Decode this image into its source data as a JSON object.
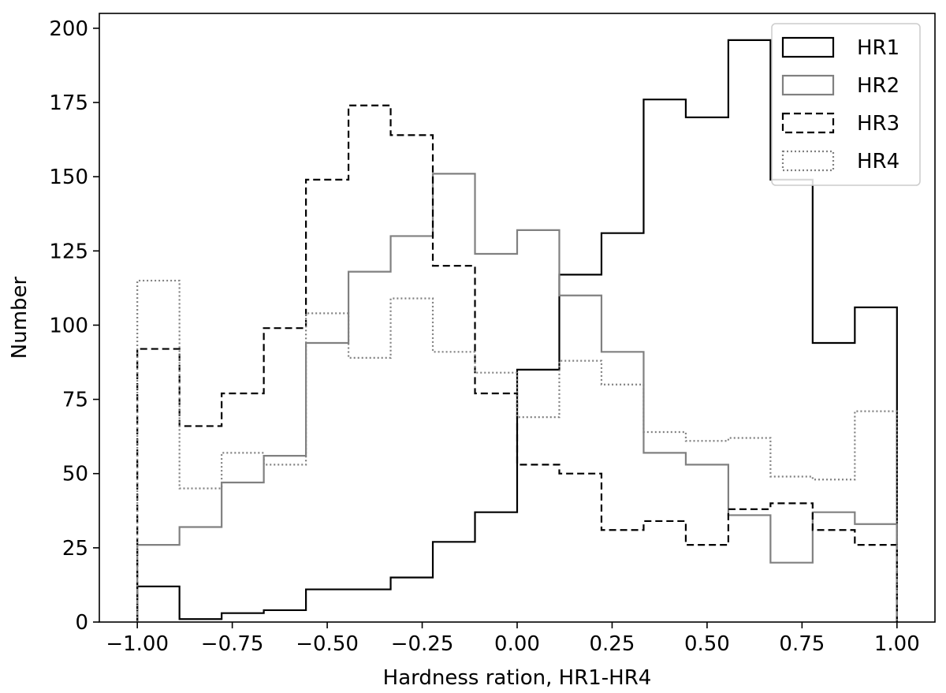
{
  "chart_data": {
    "type": "histogram-step",
    "title": "",
    "xlabel": "Hardness ration, HR1-HR4",
    "ylabel": "Number",
    "xlim": [
      -1.1,
      1.1
    ],
    "ylim": [
      0,
      205
    ],
    "xticks": [
      -1.0,
      -0.75,
      -0.5,
      -0.25,
      0.0,
      0.25,
      0.5,
      0.75,
      1.0
    ],
    "xtick_labels": [
      "−1.00",
      "−0.75",
      "−0.50",
      "−0.25",
      "0.00",
      "0.25",
      "0.50",
      "0.75",
      "1.00"
    ],
    "yticks": [
      0,
      25,
      50,
      75,
      100,
      125,
      150,
      175,
      200
    ],
    "ytick_labels": [
      "0",
      "25",
      "50",
      "75",
      "100",
      "125",
      "150",
      "175",
      "200"
    ],
    "grid": false,
    "legend_position": "top-right",
    "bin_edges": [
      -1.0,
      -0.889,
      -0.778,
      -0.667,
      -0.556,
      -0.444,
      -0.333,
      -0.222,
      -0.111,
      0.0,
      0.111,
      0.222,
      0.333,
      0.444,
      0.556,
      0.667,
      0.778,
      0.889,
      1.0
    ],
    "series": [
      {
        "name": "HR1",
        "color": "#000000",
        "dash": "solid",
        "values": [
          12,
          1,
          3,
          4,
          11,
          11,
          15,
          27,
          37,
          85,
          117,
          131,
          176,
          170,
          196,
          149,
          94,
          106
        ]
      },
      {
        "name": "HR2",
        "color": "#808080",
        "dash": "solid",
        "values": [
          26,
          32,
          47,
          56,
          94,
          118,
          130,
          151,
          124,
          132,
          110,
          91,
          57,
          53,
          36,
          20,
          37,
          33
        ]
      },
      {
        "name": "HR3",
        "color": "#000000",
        "dash": "dashed",
        "values": [
          92,
          66,
          77,
          99,
          149,
          174,
          164,
          120,
          77,
          53,
          50,
          31,
          34,
          26,
          38,
          40,
          31,
          26
        ]
      },
      {
        "name": "HR4",
        "color": "#808080",
        "dash": "dotted",
        "values": [
          115,
          45,
          57,
          53,
          104,
          89,
          109,
          91,
          84,
          69,
          88,
          80,
          64,
          61,
          62,
          49,
          48,
          71
        ]
      }
    ]
  }
}
